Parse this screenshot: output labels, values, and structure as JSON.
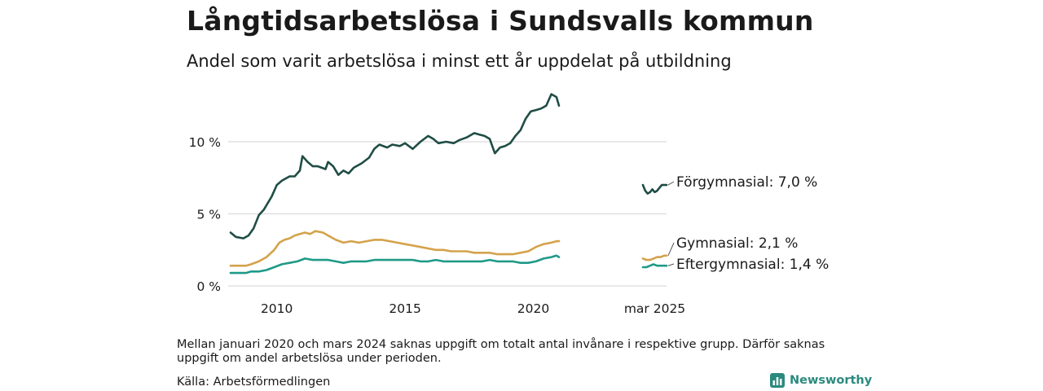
{
  "header": {
    "title": "Långtidsarbetslösa i Sundsvalls kommun",
    "subtitle": "Andel som varit arbetslösa i minst ett år uppdelat på utbildning"
  },
  "footer": {
    "note": "Mellan januari 2020 och mars 2024 saknas uppgift om totalt antal invånare i respektive grupp. Därför saknas uppgift om andel arbetslösa under perioden.",
    "source": "Källa: Arbetsförmedlingen",
    "logo_text": "Newsworthy",
    "logo_icon": "bar-chart-logo-icon"
  },
  "chart_data": {
    "type": "line",
    "ylim": [
      0,
      14
    ],
    "y_ticks": [
      {
        "value": 0,
        "label": "0 %"
      },
      {
        "value": 5,
        "label": "5 %"
      },
      {
        "value": 10,
        "label": "10 %"
      }
    ],
    "x_ticks": [
      "2010",
      "2015",
      "2020"
    ],
    "recent_tick": "mar 2025",
    "grid": true,
    "series": [
      {
        "name": "Förgymnasial",
        "color": "#1f4d45",
        "end_label": "Förgymnasial: 7,0 %",
        "x": [
          2008.2,
          2008.4,
          2008.7,
          2008.9,
          2009.1,
          2009.3,
          2009.5,
          2009.8,
          2010.0,
          2010.2,
          2010.5,
          2010.7,
          2010.9,
          2011.0,
          2011.1,
          2011.2,
          2011.4,
          2011.6,
          2011.9,
          2012.0,
          2012.2,
          2012.4,
          2012.6,
          2012.8,
          2013.0,
          2013.3,
          2013.6,
          2013.8,
          2014.0,
          2014.3,
          2014.5,
          2014.8,
          2015.0,
          2015.3,
          2015.6,
          2015.9,
          2016.1,
          2016.3,
          2016.6,
          2016.9,
          2017.1,
          2017.4,
          2017.7,
          2017.9,
          2018.1,
          2018.3,
          2018.5,
          2018.7,
          2018.9,
          2019.1,
          2019.3,
          2019.5,
          2019.7,
          2019.9,
          2020.1,
          2020.3,
          2020.5,
          2020.7,
          2020.9,
          2021.0
        ],
        "y": [
          3.7,
          3.4,
          3.3,
          3.5,
          4.0,
          4.9,
          5.3,
          6.2,
          7.0,
          7.3,
          7.6,
          7.6,
          8.0,
          9.0,
          8.8,
          8.6,
          8.3,
          8.3,
          8.1,
          8.6,
          8.3,
          7.7,
          8.0,
          7.8,
          8.2,
          8.5,
          8.9,
          9.5,
          9.8,
          9.6,
          9.8,
          9.7,
          9.9,
          9.5,
          10.0,
          10.4,
          10.2,
          9.9,
          10.0,
          9.9,
          10.1,
          10.3,
          10.6,
          10.5,
          10.4,
          10.2,
          9.2,
          9.6,
          9.7,
          9.9,
          10.4,
          10.8,
          11.6,
          12.1,
          12.2,
          12.3,
          12.5,
          13.3,
          13.1,
          12.5
        ],
        "recent_x": [
          0,
          0.1,
          0.2,
          0.3,
          0.4,
          0.5,
          0.6,
          0.7,
          0.8,
          1.0
        ],
        "recent_y": [
          7.0,
          6.6,
          6.4,
          6.5,
          6.7,
          6.5,
          6.6,
          6.8,
          7.0,
          7.0
        ]
      },
      {
        "name": "Gymnasial",
        "color": "#d4a24c",
        "end_label": "Gymnasial: 2,1 %",
        "x": [
          2008.2,
          2008.5,
          2008.8,
          2009.0,
          2009.3,
          2009.6,
          2009.9,
          2010.1,
          2010.3,
          2010.5,
          2010.7,
          2010.9,
          2011.1,
          2011.3,
          2011.5,
          2011.8,
          2012.0,
          2012.3,
          2012.6,
          2012.9,
          2013.2,
          2013.5,
          2013.8,
          2014.1,
          2014.4,
          2014.7,
          2015.0,
          2015.3,
          2015.6,
          2015.9,
          2016.2,
          2016.5,
          2016.8,
          2017.1,
          2017.4,
          2017.7,
          2018.0,
          2018.3,
          2018.6,
          2018.9,
          2019.2,
          2019.5,
          2019.8,
          2020.1,
          2020.4,
          2020.7,
          2020.9,
          2021.0
        ],
        "y": [
          1.4,
          1.4,
          1.4,
          1.5,
          1.7,
          2.0,
          2.5,
          3.0,
          3.2,
          3.3,
          3.5,
          3.6,
          3.7,
          3.6,
          3.8,
          3.7,
          3.5,
          3.2,
          3.0,
          3.1,
          3.0,
          3.1,
          3.2,
          3.2,
          3.1,
          3.0,
          2.9,
          2.8,
          2.7,
          2.6,
          2.5,
          2.5,
          2.4,
          2.4,
          2.4,
          2.3,
          2.3,
          2.3,
          2.2,
          2.2,
          2.2,
          2.3,
          2.4,
          2.7,
          2.9,
          3.0,
          3.1,
          3.1
        ],
        "recent_x": [
          0,
          0.15,
          0.3,
          0.45,
          0.6,
          0.75,
          0.9,
          1.0
        ],
        "recent_y": [
          1.9,
          1.8,
          1.8,
          1.9,
          2.0,
          2.0,
          2.1,
          2.1
        ]
      },
      {
        "name": "Eftergymnasial",
        "color": "#1f9a88",
        "end_label": "Eftergymnasial: 1,4 %",
        "x": [
          2008.2,
          2008.5,
          2008.8,
          2009.0,
          2009.3,
          2009.6,
          2009.9,
          2010.2,
          2010.5,
          2010.8,
          2011.1,
          2011.4,
          2011.7,
          2012.0,
          2012.3,
          2012.6,
          2012.9,
          2013.2,
          2013.5,
          2013.8,
          2014.1,
          2014.4,
          2014.7,
          2015.0,
          2015.3,
          2015.6,
          2015.9,
          2016.2,
          2016.5,
          2016.8,
          2017.1,
          2017.4,
          2017.7,
          2018.0,
          2018.3,
          2018.6,
          2018.9,
          2019.2,
          2019.5,
          2019.8,
          2020.1,
          2020.4,
          2020.7,
          2020.9,
          2021.0
        ],
        "y": [
          0.9,
          0.9,
          0.9,
          1.0,
          1.0,
          1.1,
          1.3,
          1.5,
          1.6,
          1.7,
          1.9,
          1.8,
          1.8,
          1.8,
          1.7,
          1.6,
          1.7,
          1.7,
          1.7,
          1.8,
          1.8,
          1.8,
          1.8,
          1.8,
          1.8,
          1.7,
          1.7,
          1.8,
          1.7,
          1.7,
          1.7,
          1.7,
          1.7,
          1.7,
          1.8,
          1.7,
          1.7,
          1.7,
          1.6,
          1.6,
          1.7,
          1.9,
          2.0,
          2.1,
          2.0
        ],
        "recent_x": [
          0,
          0.15,
          0.3,
          0.45,
          0.6,
          0.75,
          0.9,
          1.0
        ],
        "recent_y": [
          1.3,
          1.3,
          1.4,
          1.5,
          1.4,
          1.4,
          1.4,
          1.4
        ]
      }
    ]
  }
}
